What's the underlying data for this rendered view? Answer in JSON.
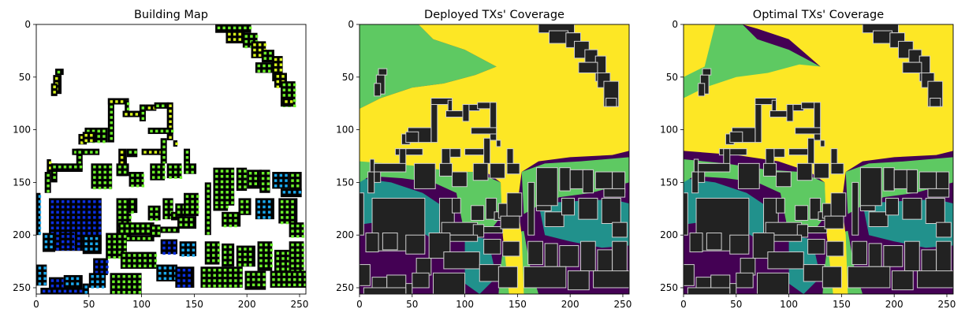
{
  "chart_data": [
    {
      "type": "heatmap",
      "title": "Building Map",
      "xlim": [
        0,
        256
      ],
      "ylim": [
        256,
        0
      ],
      "xticks": [
        0,
        50,
        100,
        150,
        200,
        250
      ],
      "yticks": [
        0,
        50,
        100,
        150,
        200,
        250
      ],
      "xlabel": "",
      "ylabel": "",
      "grid": false,
      "colors": {
        "background": "#ffffff",
        "building": "#000000",
        "marker_green": "#6bf02a",
        "marker_yellow": "#d8f51a",
        "marker_cyan": "#1aa8ee",
        "marker_blue": "#0a2fe0"
      }
    },
    {
      "type": "heatmap",
      "title": "Deployed TXs' Coverage",
      "xlim": [
        0,
        256
      ],
      "ylim": [
        256,
        0
      ],
      "xticks": [
        0,
        50,
        100,
        150,
        200,
        250
      ],
      "yticks": [
        0,
        50,
        100,
        150,
        200,
        250
      ],
      "xlabel": "",
      "ylabel": "",
      "grid": false,
      "colors": {
        "low": "#440154",
        "mid_low": "#21918c",
        "mid_high": "#5ec962",
        "high": "#fde725",
        "building": "#222222",
        "outline": "#d0d0d0"
      }
    },
    {
      "type": "heatmap",
      "title": "Optimal TXs' Coverage",
      "xlim": [
        0,
        256
      ],
      "ylim": [
        256,
        0
      ],
      "xticks": [
        0,
        50,
        100,
        150,
        200,
        250
      ],
      "yticks": [
        0,
        50,
        100,
        150,
        200,
        250
      ],
      "xlabel": "",
      "ylabel": "",
      "grid": false,
      "colors": {
        "low": "#440154",
        "mid_low": "#21918c",
        "mid_high": "#5ec962",
        "high": "#fde725",
        "building": "#222222",
        "outline": "#d0d0d0"
      }
    }
  ]
}
